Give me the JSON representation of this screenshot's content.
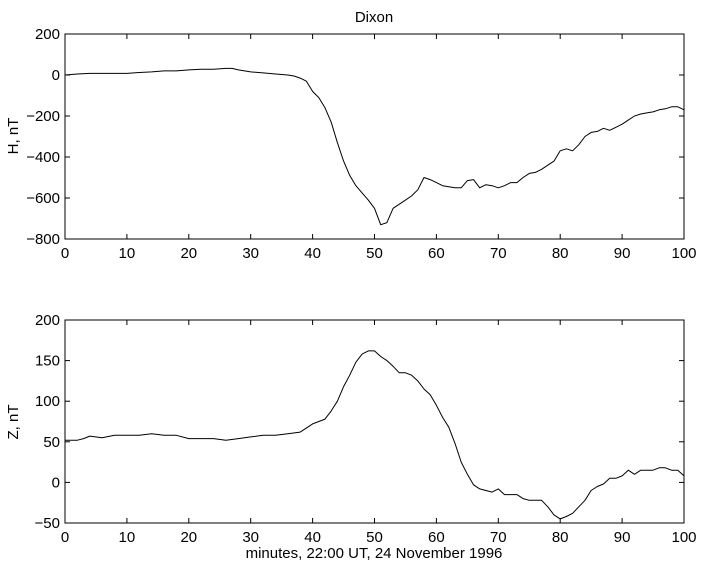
{
  "chart_data": [
    {
      "type": "line",
      "title": "Dixon",
      "xlabel": "",
      "ylabel": "H, nT",
      "xlim": [
        0,
        100
      ],
      "ylim": [
        -800,
        200
      ],
      "xticks": [
        "0",
        "10",
        "20",
        "30",
        "40",
        "50",
        "60",
        "70",
        "80",
        "90",
        "100"
      ],
      "yticks": [
        "200",
        "0",
        "−200",
        "−400",
        "−600",
        "−800"
      ],
      "grid": false,
      "series": [
        {
          "x": [
            0,
            2,
            4,
            6,
            8,
            10,
            12,
            14,
            16,
            18,
            20,
            22,
            24,
            26,
            27,
            28,
            30,
            32,
            34,
            36,
            37,
            38,
            39,
            40,
            41,
            42,
            43,
            44,
            45,
            46,
            47,
            48,
            49,
            50,
            51,
            52,
            53,
            54,
            55,
            56,
            57,
            58,
            59,
            60,
            61,
            62,
            63,
            64,
            65,
            66,
            67,
            68,
            69,
            70,
            71,
            72,
            73,
            74,
            75,
            76,
            77,
            78,
            79,
            80,
            81,
            82,
            83,
            84,
            85,
            86,
            87,
            88,
            89,
            90,
            91,
            92,
            93,
            94,
            95,
            96,
            97,
            98,
            99,
            100
          ],
          "y": [
            0,
            5,
            8,
            8,
            8,
            8,
            12,
            15,
            20,
            20,
            25,
            28,
            28,
            32,
            32,
            25,
            15,
            10,
            5,
            0,
            -5,
            -15,
            -30,
            -80,
            -110,
            -160,
            -230,
            -330,
            -420,
            -490,
            -540,
            -575,
            -610,
            -650,
            -730,
            -720,
            -650,
            -630,
            -610,
            -590,
            -560,
            -500,
            -510,
            -525,
            -540,
            -545,
            -550,
            -550,
            -515,
            -510,
            -550,
            -535,
            -540,
            -550,
            -540,
            -525,
            -525,
            -500,
            -480,
            -475,
            -460,
            -440,
            -420,
            -370,
            -360,
            -370,
            -340,
            -300,
            -280,
            -275,
            -260,
            -270,
            -255,
            -240,
            -220,
            -200,
            -190,
            -185,
            -180,
            -170,
            -165,
            -155,
            -155,
            -170
          ]
        }
      ]
    },
    {
      "type": "line",
      "title": "",
      "xlabel": "minutes, 22:00 UT, 24 November 1996",
      "ylabel": "Z, nT",
      "xlim": [
        0,
        100
      ],
      "ylim": [
        -50,
        200
      ],
      "xticks": [
        "0",
        "10",
        "20",
        "30",
        "40",
        "50",
        "60",
        "70",
        "80",
        "90",
        "100"
      ],
      "yticks": [
        "200",
        "150",
        "100",
        "50",
        "0",
        "−50"
      ],
      "grid": false,
      "series": [
        {
          "x": [
            0,
            2,
            3,
            4,
            6,
            8,
            10,
            12,
            14,
            16,
            18,
            20,
            22,
            24,
            26,
            28,
            30,
            32,
            34,
            36,
            38,
            40,
            42,
            43,
            44,
            45,
            46,
            47,
            48,
            49,
            50,
            51,
            52,
            53,
            54,
            55,
            56,
            57,
            58,
            59,
            60,
            61,
            62,
            63,
            64,
            65,
            66,
            67,
            68,
            69,
            70,
            71,
            72,
            73,
            74,
            75,
            76,
            77,
            78,
            79,
            80,
            81,
            82,
            83,
            84,
            85,
            86,
            87,
            88,
            89,
            90,
            91,
            92,
            93,
            94,
            95,
            96,
            97,
            98,
            99,
            100
          ],
          "y": [
            52,
            52,
            54,
            57,
            55,
            58,
            58,
            58,
            60,
            58,
            58,
            54,
            54,
            54,
            52,
            54,
            56,
            58,
            58,
            60,
            62,
            72,
            78,
            88,
            100,
            118,
            132,
            148,
            158,
            162,
            162,
            155,
            150,
            143,
            135,
            135,
            132,
            125,
            115,
            108,
            95,
            80,
            68,
            48,
            25,
            10,
            -3,
            -8,
            -10,
            -12,
            -8,
            -15,
            -15,
            -15,
            -20,
            -22,
            -22,
            -22,
            -30,
            -40,
            -45,
            -42,
            -38,
            -30,
            -22,
            -10,
            -5,
            -2,
            5,
            5,
            8,
            15,
            10,
            15,
            15,
            15,
            18,
            18,
            15,
            15,
            8
          ]
        }
      ]
    }
  ]
}
